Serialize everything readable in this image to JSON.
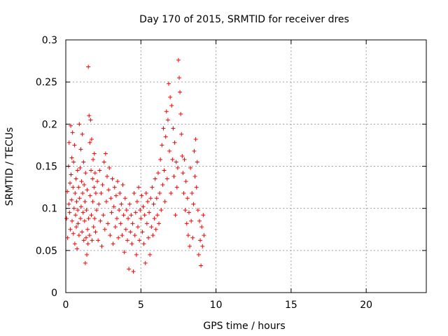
{
  "chart_data": {
    "type": "scatter",
    "title": "Day 170 of 2015, SRMTID for receiver dres",
    "xlabel": "GPS time / hours",
    "ylabel": "SRMTID / TECUs",
    "xlim": [
      0,
      24
    ],
    "ylim": [
      0,
      0.3
    ],
    "xticks": [
      0,
      5,
      10,
      15,
      20
    ],
    "yticks": [
      0,
      0.05,
      0.1,
      0.15,
      0.2,
      0.25,
      0.3
    ],
    "xtick_labels": [
      "0",
      "5",
      "10",
      "15",
      "20"
    ],
    "ytick_labels": [
      "0",
      "0.05",
      "0.1",
      "0.15",
      "0.2",
      "0.25",
      "0.3"
    ],
    "grid": true,
    "marker": "+",
    "color": "#ff0000",
    "points": [
      [
        0.05,
        0.088
      ],
      [
        0.1,
        0.12
      ],
      [
        0.12,
        0.065
      ],
      [
        0.18,
        0.15
      ],
      [
        0.2,
        0.105
      ],
      [
        0.22,
        0.178
      ],
      [
        0.25,
        0.095
      ],
      [
        0.28,
        0.13
      ],
      [
        0.3,
        0.075
      ],
      [
        0.33,
        0.198
      ],
      [
        0.35,
        0.14
      ],
      [
        0.38,
        0.11
      ],
      [
        0.4,
        0.16
      ],
      [
        0.42,
        0.085
      ],
      [
        0.45,
        0.19
      ],
      [
        0.48,
        0.125
      ],
      [
        0.5,
        0.07
      ],
      [
        0.52,
        0.155
      ],
      [
        0.55,
        0.1
      ],
      [
        0.58,
        0.175
      ],
      [
        0.6,
        0.058
      ],
      [
        0.62,
        0.118
      ],
      [
        0.65,
        0.092
      ],
      [
        0.68,
        0.135
      ],
      [
        0.7,
        0.078
      ],
      [
        0.72,
        0.108
      ],
      [
        0.75,
        0.052
      ],
      [
        0.78,
        0.145
      ],
      [
        0.8,
        0.098
      ],
      [
        0.82,
        0.082
      ],
      [
        0.85,
        0.125
      ],
      [
        0.88,
        0.068
      ],
      [
        0.9,
        0.2
      ],
      [
        0.92,
        0.112
      ],
      [
        0.95,
        0.148
      ],
      [
        0.98,
        0.088
      ],
      [
        1.0,
        0.17
      ],
      [
        1.02,
        0.102
      ],
      [
        1.05,
        0.132
      ],
      [
        1.08,
        0.072
      ],
      [
        1.1,
        0.188
      ],
      [
        1.12,
        0.118
      ],
      [
        1.15,
        0.095
      ],
      [
        1.18,
        0.155
      ],
      [
        1.2,
        0.062
      ],
      [
        1.22,
        0.128
      ],
      [
        1.25,
        0.085
      ],
      [
        1.28,
        0.108
      ],
      [
        1.3,
        0.035
      ],
      [
        1.32,
        0.142
      ],
      [
        1.35,
        0.065
      ],
      [
        1.38,
        0.098
      ],
      [
        1.4,
        0.045
      ],
      [
        1.42,
        0.122
      ],
      [
        1.45,
        0.075
      ],
      [
        1.48,
        0.058
      ],
      [
        1.5,
        0.268
      ],
      [
        1.52,
        0.088
      ],
      [
        1.55,
        0.21
      ],
      [
        1.58,
        0.068
      ],
      [
        1.6,
        0.178
      ],
      [
        1.62,
        0.115
      ],
      [
        1.65,
        0.205
      ],
      [
        1.68,
        0.145
      ],
      [
        1.7,
        0.092
      ],
      [
        1.72,
        0.182
      ],
      [
        1.75,
        0.062
      ],
      [
        1.78,
        0.135
      ],
      [
        1.8,
        0.108
      ],
      [
        1.82,
        0.158
      ],
      [
        1.85,
        0.078
      ],
      [
        1.88,
        0.125
      ],
      [
        1.9,
        0.165
      ],
      [
        1.92,
        0.088
      ],
      [
        1.95,
        0.142
      ],
      [
        1.98,
        0.072
      ],
      [
        2.0,
        0.118
      ],
      [
        2.05,
        0.098
      ],
      [
        2.1,
        0.132
      ],
      [
        2.15,
        0.062
      ],
      [
        2.2,
        0.105
      ],
      [
        2.25,
        0.145
      ],
      [
        2.3,
        0.085
      ],
      [
        2.35,
        0.118
      ],
      [
        2.4,
        0.055
      ],
      [
        2.45,
        0.128
      ],
      [
        2.5,
        0.092
      ],
      [
        2.55,
        0.155
      ],
      [
        2.6,
        0.075
      ],
      [
        2.65,
        0.165
      ],
      [
        2.7,
        0.108
      ],
      [
        2.75,
        0.138
      ],
      [
        2.8,
        0.082
      ],
      [
        2.85,
        0.122
      ],
      [
        2.9,
        0.148
      ],
      [
        2.95,
        0.068
      ],
      [
        3.0,
        0.112
      ],
      [
        3.05,
        0.095
      ],
      [
        3.1,
        0.135
      ],
      [
        3.15,
        0.058
      ],
      [
        3.2,
        0.102
      ],
      [
        3.25,
        0.125
      ],
      [
        3.3,
        0.078
      ],
      [
        3.35,
        0.115
      ],
      [
        3.4,
        0.088
      ],
      [
        3.45,
        0.132
      ],
      [
        3.5,
        0.065
      ],
      [
        3.55,
        0.098
      ],
      [
        3.6,
        0.118
      ],
      [
        3.65,
        0.082
      ],
      [
        3.7,
        0.105
      ],
      [
        3.75,
        0.068
      ],
      [
        3.8,
        0.128
      ],
      [
        3.85,
        0.092
      ],
      [
        3.9,
        0.048
      ],
      [
        3.95,
        0.112
      ],
      [
        4.0,
        0.075
      ],
      [
        4.05,
        0.098
      ],
      [
        4.1,
        0.062
      ],
      [
        4.15,
        0.088
      ],
      [
        4.2,
        0.028
      ],
      [
        4.25,
        0.105
      ],
      [
        4.3,
        0.072
      ],
      [
        4.35,
        0.092
      ],
      [
        4.4,
        0.058
      ],
      [
        4.45,
        0.082
      ],
      [
        4.5,
        0.025
      ],
      [
        4.55,
        0.118
      ],
      [
        4.6,
        0.068
      ],
      [
        4.65,
        0.095
      ],
      [
        4.7,
        0.045
      ],
      [
        4.75,
        0.108
      ],
      [
        4.8,
        0.078
      ],
      [
        4.85,
        0.125
      ],
      [
        4.9,
        0.062
      ],
      [
        4.95,
        0.098
      ],
      [
        5.0,
        0.088
      ],
      [
        5.05,
        0.115
      ],
      [
        5.1,
        0.072
      ],
      [
        5.15,
        0.102
      ],
      [
        5.2,
        0.058
      ],
      [
        5.25,
        0.092
      ],
      [
        5.3,
        0.035
      ],
      [
        5.35,
        0.118
      ],
      [
        5.4,
        0.082
      ],
      [
        5.45,
        0.108
      ],
      [
        5.5,
        0.065
      ],
      [
        5.55,
        0.095
      ],
      [
        5.6,
        0.045
      ],
      [
        5.65,
        0.112
      ],
      [
        5.7,
        0.078
      ],
      [
        5.75,
        0.125
      ],
      [
        5.8,
        0.068
      ],
      [
        5.85,
        0.105
      ],
      [
        5.9,
        0.088
      ],
      [
        5.95,
        0.135
      ],
      [
        6.0,
        0.075
      ],
      [
        6.05,
        0.112
      ],
      [
        6.1,
        0.092
      ],
      [
        6.15,
        0.142
      ],
      [
        6.2,
        0.082
      ],
      [
        6.25,
        0.118
      ],
      [
        6.3,
        0.158
      ],
      [
        6.35,
        0.098
      ],
      [
        6.4,
        0.175
      ],
      [
        6.45,
        0.128
      ],
      [
        6.5,
        0.195
      ],
      [
        6.55,
        0.145
      ],
      [
        6.6,
        0.108
      ],
      [
        6.65,
        0.185
      ],
      [
        6.7,
        0.215
      ],
      [
        6.75,
        0.135
      ],
      [
        6.8,
        0.205
      ],
      [
        6.85,
        0.248
      ],
      [
        6.9,
        0.168
      ],
      [
        6.95,
        0.232
      ],
      [
        7.0,
        0.118
      ],
      [
        7.05,
        0.222
      ],
      [
        7.1,
        0.158
      ],
      [
        7.15,
        0.195
      ],
      [
        7.2,
        0.138
      ],
      [
        7.25,
        0.178
      ],
      [
        7.3,
        0.092
      ],
      [
        7.35,
        0.155
      ],
      [
        7.4,
        0.125
      ],
      [
        7.45,
        0.148
      ],
      [
        7.5,
        0.276
      ],
      [
        7.55,
        0.255
      ],
      [
        7.6,
        0.238
      ],
      [
        7.65,
        0.212
      ],
      [
        7.7,
        0.188
      ],
      [
        7.75,
        0.162
      ],
      [
        7.8,
        0.142
      ],
      [
        7.85,
        0.118
      ],
      [
        7.9,
        0.158
      ],
      [
        7.95,
        0.098
      ],
      [
        8.0,
        0.132
      ],
      [
        8.05,
        0.082
      ],
      [
        8.1,
        0.112
      ],
      [
        8.15,
        0.068
      ],
      [
        8.2,
        0.095
      ],
      [
        8.25,
        0.055
      ],
      [
        8.3,
        0.148
      ],
      [
        8.35,
        0.085
      ],
      [
        8.4,
        0.118
      ],
      [
        8.45,
        0.065
      ],
      [
        8.5,
        0.105
      ],
      [
        8.55,
        0.168
      ],
      [
        8.6,
        0.138
      ],
      [
        8.65,
        0.182
      ],
      [
        8.7,
        0.125
      ],
      [
        8.75,
        0.155
      ],
      [
        8.8,
        0.098
      ],
      [
        8.85,
        0.045
      ],
      [
        8.9,
        0.085
      ],
      [
        8.95,
        0.062
      ],
      [
        9.0,
        0.032
      ],
      [
        9.05,
        0.078
      ],
      [
        9.1,
        0.055
      ],
      [
        9.15,
        0.092
      ],
      [
        9.2,
        0.068
      ]
    ]
  }
}
